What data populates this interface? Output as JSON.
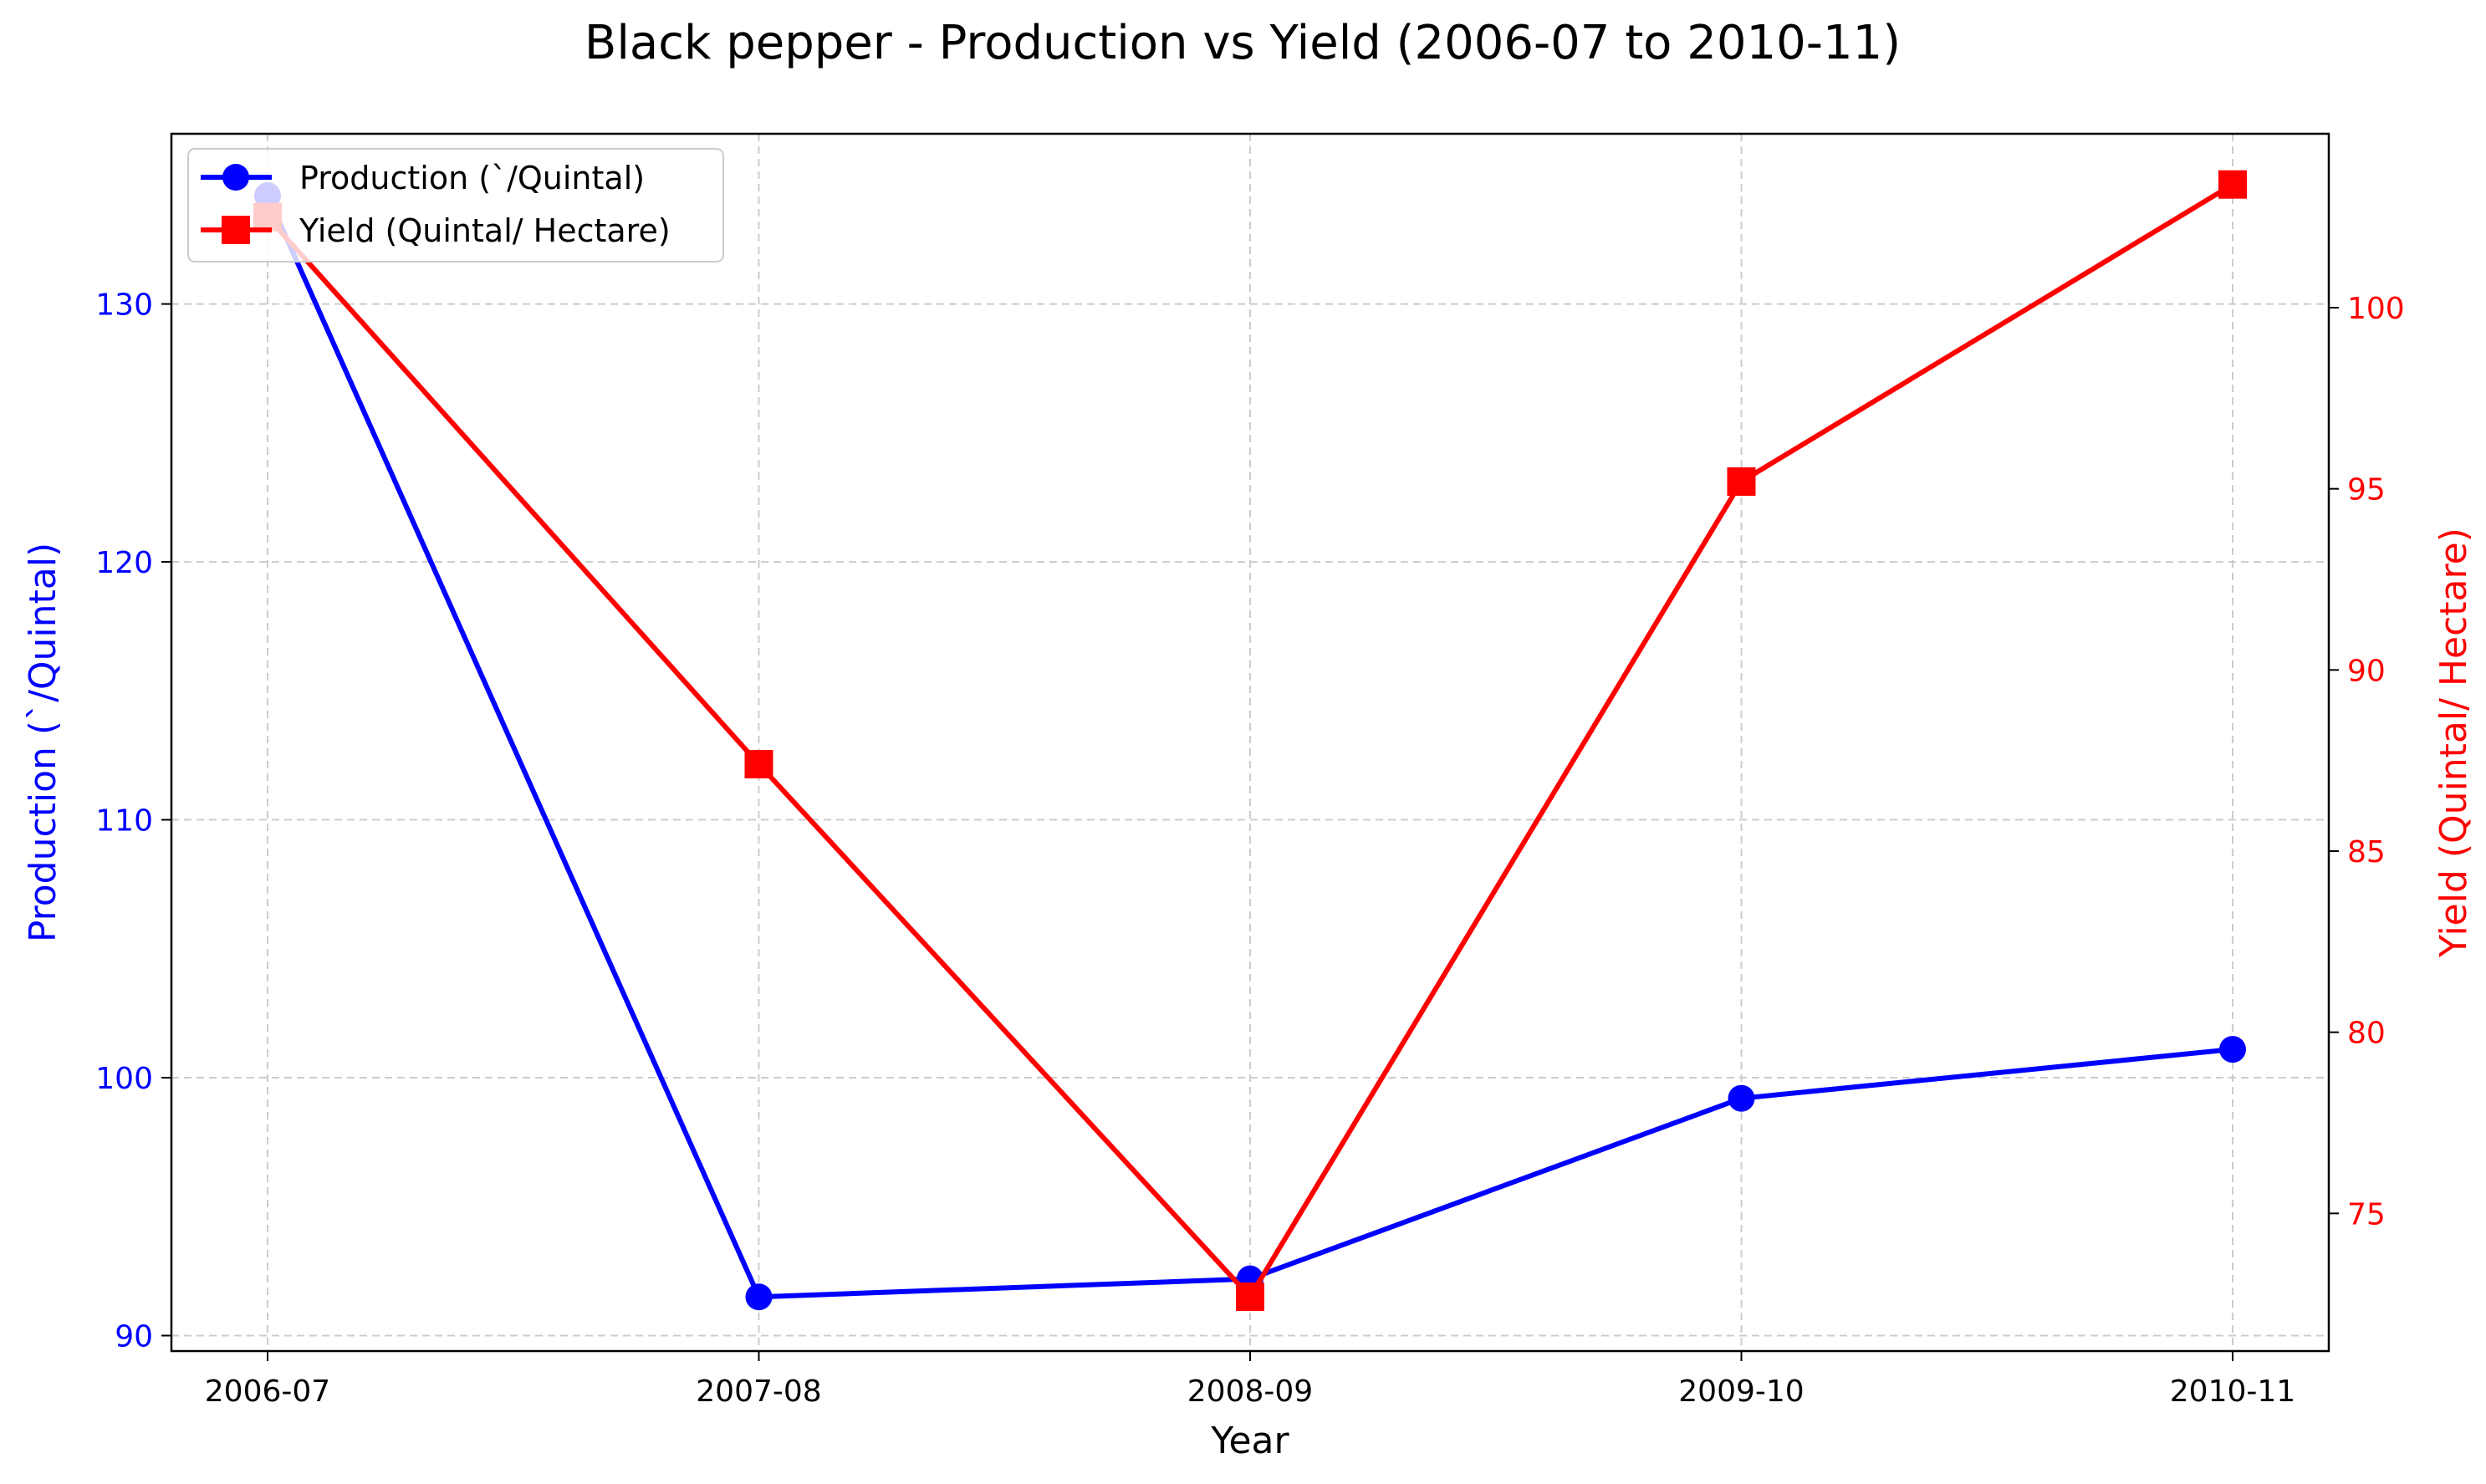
{
  "chart_data": {
    "type": "line",
    "title": "Black pepper - Production vs Yield (2006-07 to 2010-11)",
    "xlabel": "Year",
    "categories": [
      "2006-07",
      "2007-08",
      "2008-09",
      "2009-10",
      "2010-11"
    ],
    "grid": true,
    "legend_position": "top-left",
    "axes": {
      "left": {
        "label": "Production (`/Quintal)",
        "color": "#0000ff",
        "ticks": [
          90,
          100,
          110,
          120,
          130
        ],
        "ylim": [
          89.4,
          136.6
        ]
      },
      "right": {
        "label": "Yield (Quintal/ Hectare)",
        "color": "#ff0000",
        "ticks": [
          75,
          80,
          85,
          90,
          95,
          100
        ],
        "ylim": [
          71.2,
          104.8
        ]
      }
    },
    "series": [
      {
        "name": "Production (`/Quintal)",
        "axis": "left",
        "color": "#0000ff",
        "marker": "circle",
        "values": [
          134.2,
          91.5,
          92.2,
          99.2,
          101.1
        ]
      },
      {
        "name": "Yield (Quintal/ Hectare)",
        "axis": "right",
        "color": "#ff0000",
        "marker": "square",
        "values": [
          102.5,
          87.4,
          72.7,
          95.2,
          103.4
        ]
      }
    ]
  }
}
